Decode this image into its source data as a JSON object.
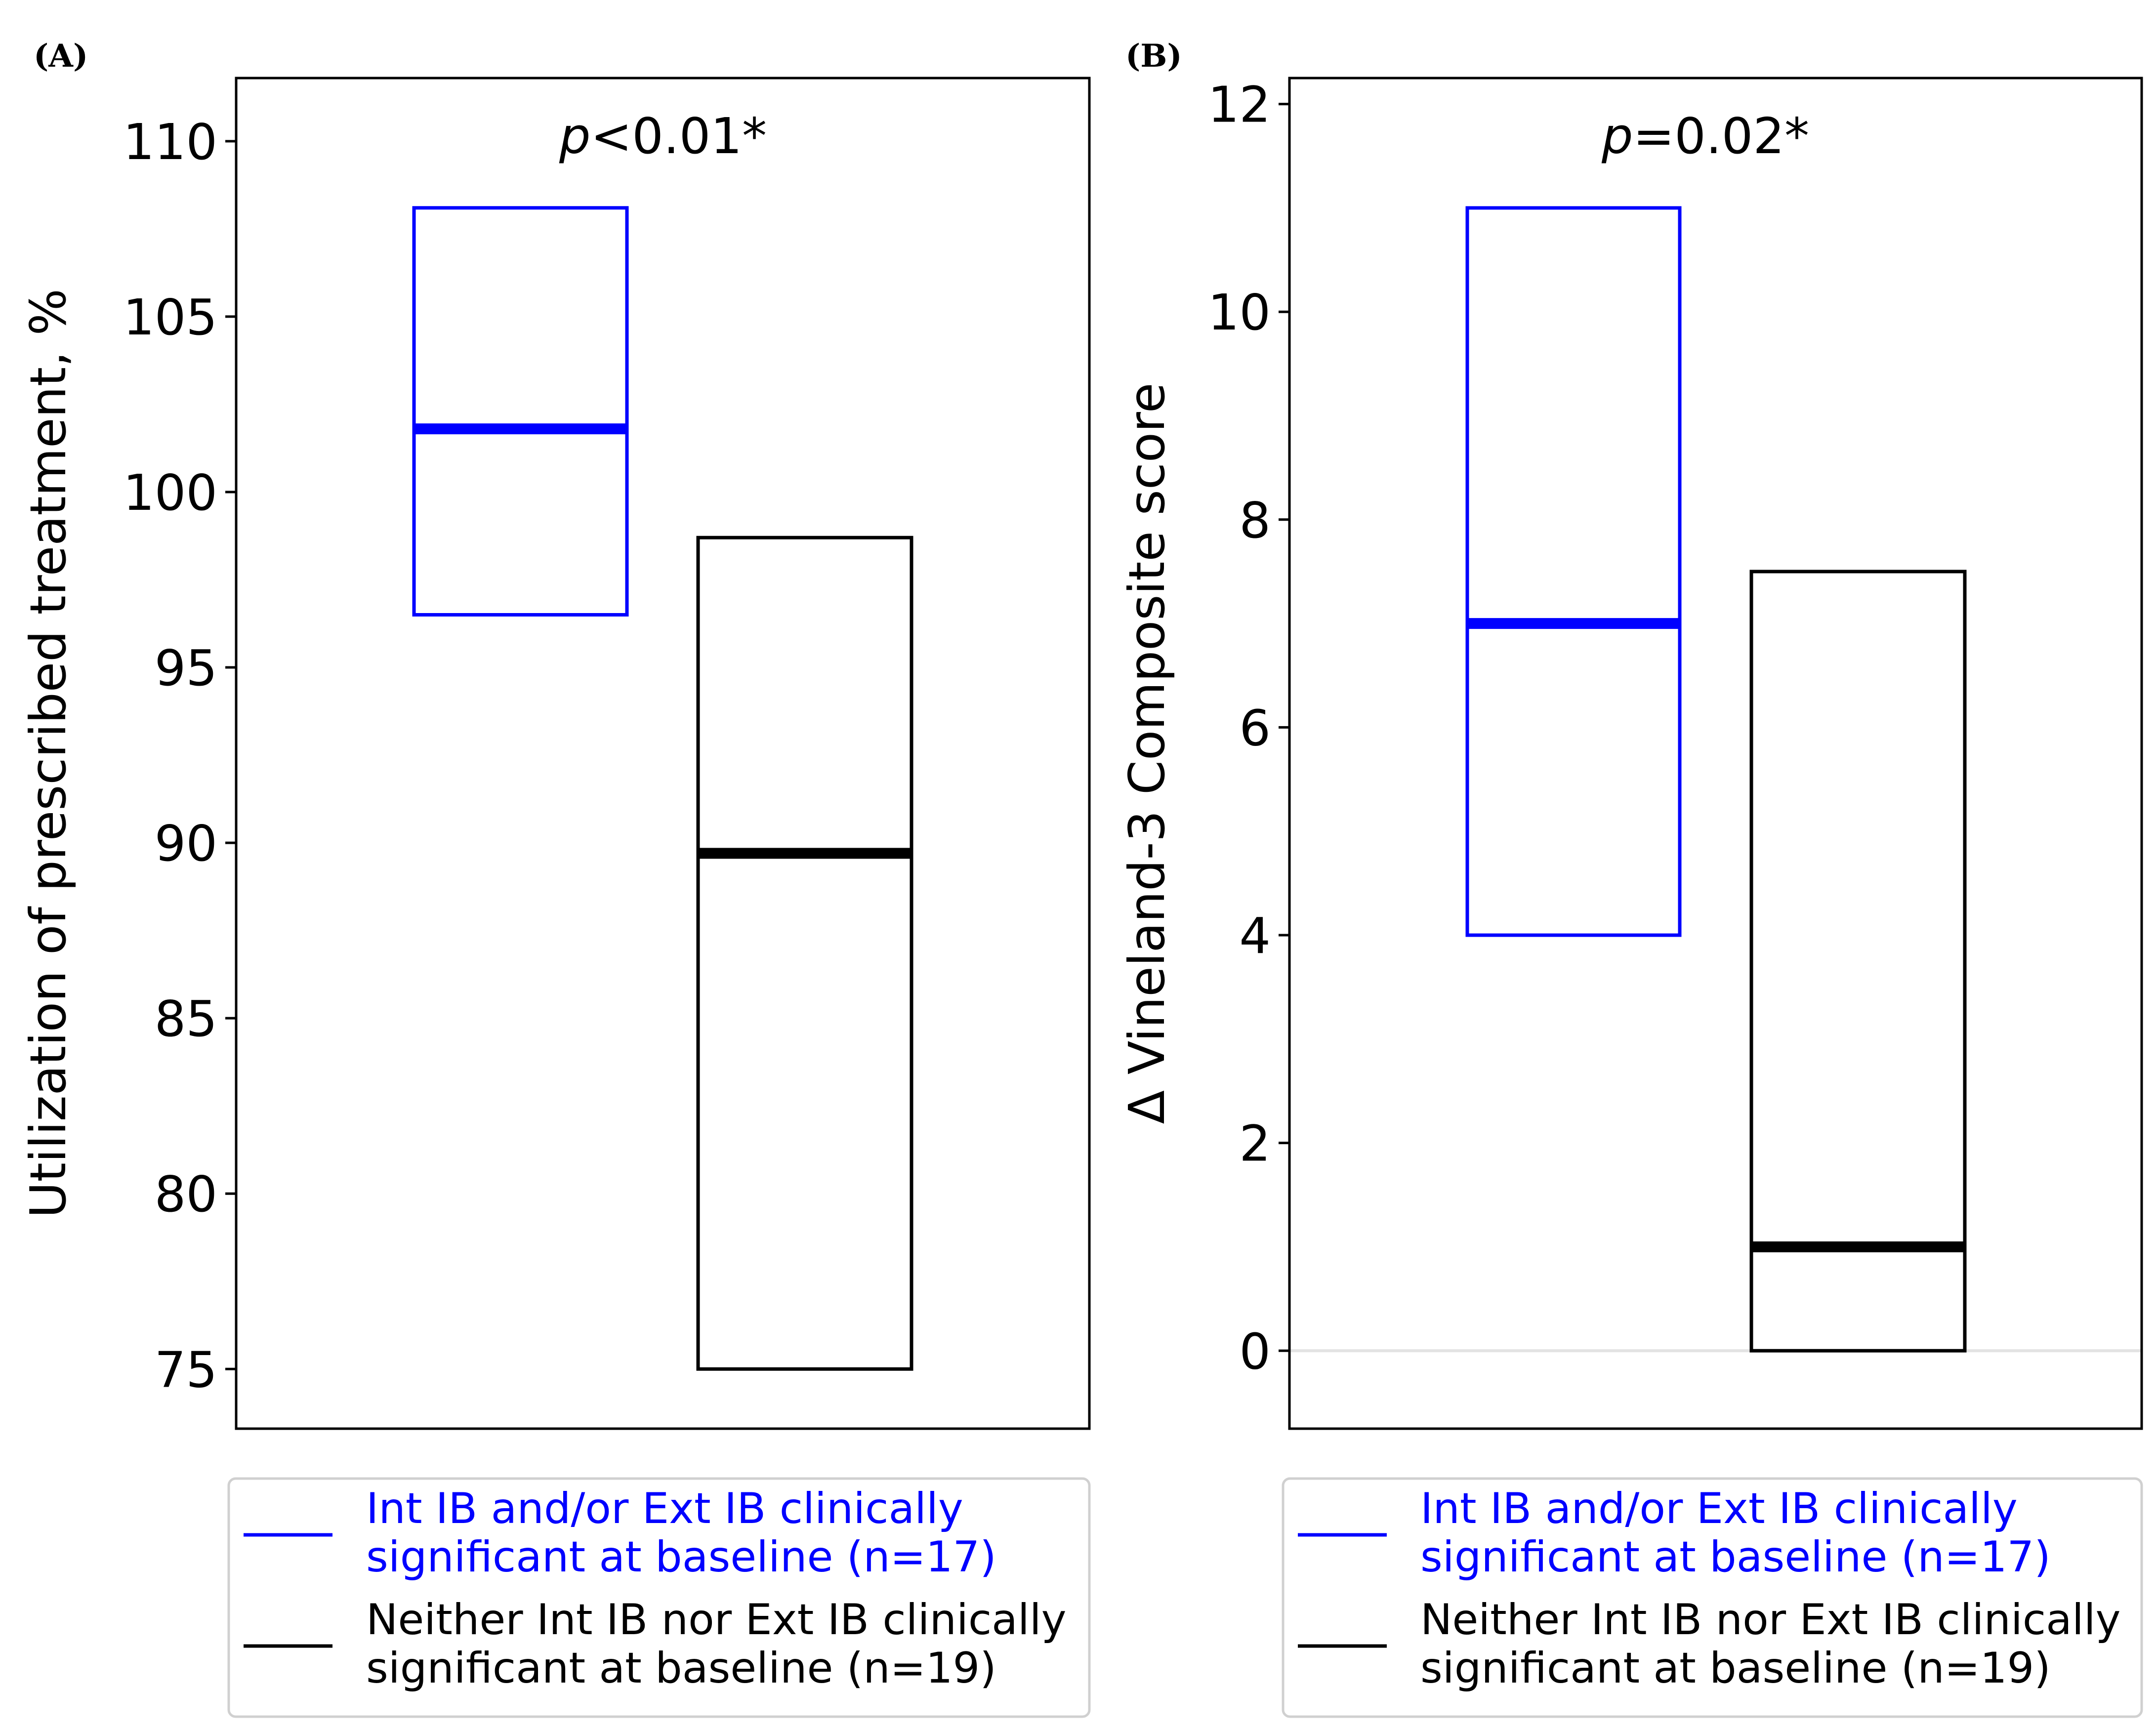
{
  "chart_data": [
    {
      "type": "box",
      "panel_label": "(A)",
      "ylabel": "Utilization of prescribed treatment, %",
      "ylim": [
        73.3,
        111.8
      ],
      "yticks": [
        75,
        80,
        85,
        90,
        95,
        100,
        105,
        110
      ],
      "ytick_labels": [
        "75",
        "80",
        "85",
        "90",
        "95",
        "100",
        "105",
        "110"
      ],
      "annotation": {
        "p": "p",
        "rest": "<0.01*"
      },
      "series": [
        {
          "name": "Int IB and/or Ext IB clinically significant at baseline (n=17)",
          "color": "#0000ff",
          "q1": 96.5,
          "median": 101.8,
          "q3": 108.1
        },
        {
          "name": "Neither Int IB nor Ext IB clinically significant at baseline (n=19)",
          "color": "#000000",
          "q1": 75.0,
          "median": 89.7,
          "q3": 98.7
        }
      ],
      "zero_line": null,
      "legend": [
        {
          "line1": "Int IB and/or Ext IB clinically",
          "line2": "significant at baseline (n=17)",
          "color": "#0000ff"
        },
        {
          "line1": "Neither Int IB nor Ext IB clinically",
          "line2": "significant at baseline (n=19)",
          "color": "#000000"
        }
      ]
    },
    {
      "type": "box",
      "panel_label": "(B)",
      "ylabel": "Δ Vineland-3 Composite score",
      "ylim": [
        -0.75,
        12.25
      ],
      "yticks": [
        0,
        2,
        4,
        6,
        8,
        10,
        12
      ],
      "ytick_labels": [
        "0",
        "2",
        "4",
        "6",
        "8",
        "10",
        "12"
      ],
      "annotation": {
        "p": "p",
        "rest": "=0.02*"
      },
      "series": [
        {
          "name": "Int IB and/or Ext IB clinically significant at baseline (n=17)",
          "color": "#0000ff",
          "q1": 4.0,
          "median": 7.0,
          "q3": 11.0
        },
        {
          "name": "Neither Int IB nor Ext IB clinically significant at baseline (n=19)",
          "color": "#000000",
          "q1": 0.0,
          "median": 1.0,
          "q3": 7.5
        }
      ],
      "zero_line": 0,
      "legend": [
        {
          "line1": "Int IB and/or Ext IB clinically",
          "line2": "significant at baseline (n=17)",
          "color": "#0000ff"
        },
        {
          "line1": "Neither Int IB nor Ext IB clinically",
          "line2": "significant at baseline (n=19)",
          "color": "#000000"
        }
      ]
    }
  ]
}
